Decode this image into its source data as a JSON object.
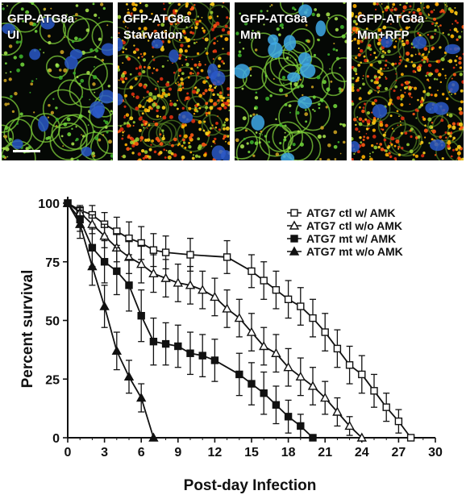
{
  "panels": [
    {
      "line1": "GFP-ATG8a",
      "line2": "UI",
      "tone": "green"
    },
    {
      "line1": "GFP-ATG8a",
      "line2": "Starvation",
      "tone": "orange"
    },
    {
      "line1": "GFP-ATG8a",
      "line2": "Mm",
      "tone": "green"
    },
    {
      "line1": "GFP-ATG8a",
      "line2": "Mm+RFP",
      "tone": "orange"
    }
  ],
  "chart_data": {
    "type": "line",
    "xlabel": "Post-day Infection",
    "ylabel": "Percent survival",
    "xlim": [
      0,
      30
    ],
    "ylim": [
      0,
      100
    ],
    "xticks": [
      0,
      3,
      6,
      9,
      12,
      15,
      18,
      21,
      24,
      27,
      30
    ],
    "yticks": [
      0,
      25,
      50,
      75,
      100
    ],
    "legend_position": "top-right",
    "series": [
      {
        "name": "ATG7 ctl  w/ AMK",
        "marker": "square-open",
        "x": [
          0,
          1,
          2,
          3,
          4,
          5,
          6,
          7,
          8,
          10,
          13,
          15,
          16,
          17,
          18,
          19,
          20,
          21,
          22,
          23,
          24,
          25,
          26,
          27,
          28
        ],
        "y": [
          100,
          97,
          95,
          91,
          88,
          85,
          83,
          80,
          79,
          78,
          77,
          71,
          67,
          63,
          59,
          56,
          51,
          45,
          38,
          31,
          27,
          20,
          13,
          7,
          0
        ],
        "err": [
          0,
          2,
          4,
          5,
          6,
          7,
          7,
          7,
          7,
          7,
          7,
          7,
          8,
          8,
          8,
          8,
          8,
          8,
          8,
          8,
          8,
          7,
          6,
          5,
          0
        ]
      },
      {
        "name": "ATG7 ctl  w/o AMK",
        "marker": "triangle-open",
        "x": [
          0,
          1,
          2,
          3,
          4,
          5,
          6,
          7,
          8,
          9,
          10,
          11,
          12,
          13,
          14,
          15,
          16,
          17,
          18,
          19,
          20,
          21,
          22,
          23,
          24
        ],
        "y": [
          100,
          96,
          91,
          86,
          81,
          77,
          74,
          70,
          68,
          66,
          65,
          63,
          60,
          55,
          51,
          45,
          39,
          36,
          30,
          26,
          22,
          17,
          11,
          5,
          0
        ],
        "err": [
          0,
          2,
          4,
          5,
          6,
          7,
          8,
          8,
          8,
          8,
          8,
          8,
          8,
          8,
          8,
          8,
          8,
          8,
          8,
          8,
          8,
          7,
          6,
          4,
          0
        ]
      },
      {
        "name": "ATG7 mt  w/ AMK",
        "marker": "square-filled",
        "x": [
          0,
          1,
          2,
          3,
          4,
          5,
          6,
          7,
          8,
          9,
          10,
          11,
          12,
          14,
          15,
          16,
          17,
          18,
          19,
          20
        ],
        "y": [
          100,
          93,
          81,
          75,
          71,
          65,
          52,
          41,
          40,
          39,
          36,
          35,
          33,
          27,
          23,
          19,
          14,
          9,
          5,
          0
        ],
        "err": [
          0,
          5,
          8,
          9,
          10,
          11,
          11,
          10,
          9,
          9,
          9,
          9,
          9,
          9,
          9,
          9,
          8,
          7,
          5,
          0
        ]
      },
      {
        "name": "ATG7 mt  w/o AMK",
        "marker": "triangle-filled",
        "x": [
          0,
          1,
          2,
          3,
          4,
          5,
          6,
          7
        ],
        "y": [
          100,
          91,
          73,
          56,
          37,
          26,
          17,
          0
        ],
        "err": [
          0,
          6,
          8,
          9,
          8,
          7,
          6,
          0
        ]
      }
    ]
  }
}
